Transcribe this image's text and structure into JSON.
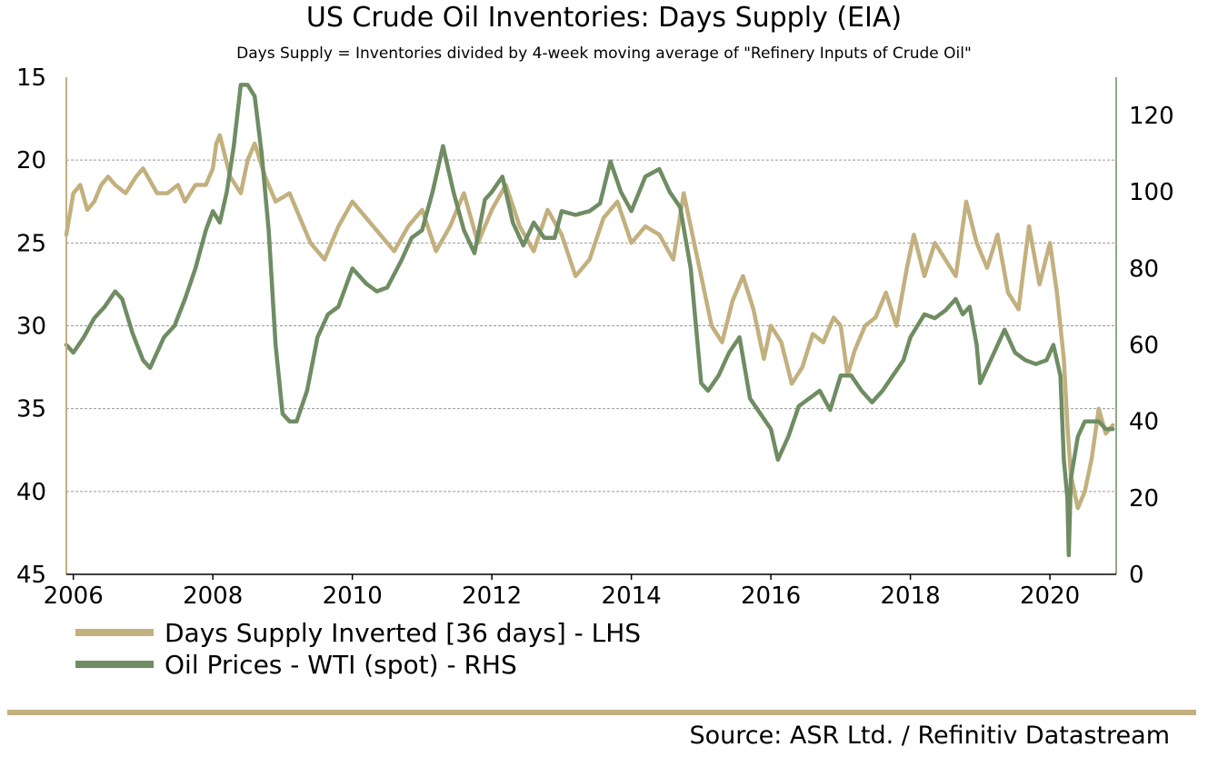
{
  "chart_data": {
    "type": "line",
    "title": "US Crude Oil Inventories: Days Supply (EIA)",
    "subtitle": "Days Supply = Inventories divided by 4-week moving average of \"Refinery Inputs of Crude Oil\"",
    "x_ticks": [
      "2006",
      "2008",
      "2010",
      "2012",
      "2014",
      "2016",
      "2018",
      "2020"
    ],
    "xlim": [
      2005.9,
      2020.95
    ],
    "left_axis": {
      "ticks": [
        "15",
        "20",
        "25",
        "30",
        "35",
        "40",
        "45"
      ],
      "ylim": [
        15,
        45
      ],
      "inverted": true
    },
    "right_axis": {
      "ticks": [
        "0",
        "20",
        "40",
        "60",
        "80",
        "100",
        "120"
      ],
      "ylim": [
        0,
        130
      ]
    },
    "grid": "horizontal dashed",
    "series": [
      {
        "name": "Days Supply Inverted [36 days] - LHS",
        "axis": "left",
        "color": "#c2b07e",
        "x": [
          2005.9,
          2006.0,
          2006.1,
          2006.2,
          2006.3,
          2006.4,
          2006.5,
          2006.6,
          2006.75,
          2006.9,
          2007.0,
          2007.2,
          2007.35,
          2007.5,
          2007.6,
          2007.75,
          2007.9,
          2008.0,
          2008.05,
          2008.1,
          2008.25,
          2008.4,
          2008.5,
          2008.6,
          2008.75,
          2008.9,
          2009.1,
          2009.25,
          2009.4,
          2009.6,
          2009.8,
          2010.0,
          2010.2,
          2010.4,
          2010.6,
          2010.8,
          2011.0,
          2011.2,
          2011.4,
          2011.6,
          2011.8,
          2012.0,
          2012.2,
          2012.4,
          2012.6,
          2012.8,
          2013.0,
          2013.2,
          2013.4,
          2013.6,
          2013.8,
          2014.0,
          2014.2,
          2014.4,
          2014.6,
          2014.75,
          2014.9,
          2015.0,
          2015.15,
          2015.3,
          2015.45,
          2015.6,
          2015.75,
          2015.9,
          2016.0,
          2016.15,
          2016.3,
          2016.45,
          2016.6,
          2016.75,
          2016.9,
          2017.0,
          2017.1,
          2017.2,
          2017.35,
          2017.5,
          2017.65,
          2017.8,
          2017.95,
          2018.05,
          2018.2,
          2018.35,
          2018.5,
          2018.65,
          2018.8,
          2018.95,
          2019.1,
          2019.25,
          2019.4,
          2019.55,
          2019.7,
          2019.85,
          2020.0,
          2020.1,
          2020.2,
          2020.25,
          2020.3,
          2020.4,
          2020.5,
          2020.6,
          2020.7,
          2020.8,
          2020.9
        ],
        "values": [
          24.5,
          22,
          21.5,
          23,
          22.5,
          21.5,
          21,
          21.5,
          22,
          21,
          20.5,
          22,
          22,
          21.5,
          22.5,
          21.5,
          21.5,
          20.5,
          19,
          18.5,
          21,
          22,
          20,
          19,
          21,
          22.5,
          22,
          23.5,
          25,
          26,
          24,
          22.5,
          23.5,
          24.5,
          25.5,
          24,
          23,
          25.5,
          24,
          22,
          25,
          23,
          21.5,
          24,
          25.5,
          23,
          24.5,
          27,
          26,
          23.5,
          22.5,
          25,
          24,
          24.5,
          26,
          22,
          25,
          27,
          30,
          31,
          28.5,
          27,
          29,
          32,
          30,
          31,
          33.5,
          32.5,
          30.5,
          31,
          29.5,
          30,
          33,
          31.5,
          30,
          29.5,
          28,
          30,
          26.5,
          24.5,
          27,
          25,
          26,
          27,
          22.5,
          25,
          26.5,
          24.5,
          28,
          29,
          24,
          27.5,
          25,
          28,
          32,
          36,
          39,
          41,
          40,
          38,
          35,
          36.5,
          36
        ]
      },
      {
        "name": "Oil Prices - WTI (spot) - RHS",
        "axis": "right",
        "color": "#6f8c63",
        "x": [
          2005.9,
          2006.0,
          2006.15,
          2006.3,
          2006.45,
          2006.6,
          2006.7,
          2006.85,
          2007.0,
          2007.1,
          2007.3,
          2007.45,
          2007.6,
          2007.75,
          2007.9,
          2008.0,
          2008.1,
          2008.2,
          2008.3,
          2008.4,
          2008.5,
          2008.6,
          2008.7,
          2008.8,
          2008.9,
          2009.0,
          2009.1,
          2009.2,
          2009.35,
          2009.5,
          2009.65,
          2009.8,
          2010.0,
          2010.2,
          2010.35,
          2010.5,
          2010.7,
          2010.85,
          2011.0,
          2011.15,
          2011.3,
          2011.45,
          2011.6,
          2011.75,
          2011.9,
          2012.0,
          2012.15,
          2012.3,
          2012.45,
          2012.6,
          2012.75,
          2012.9,
          2013.0,
          2013.2,
          2013.4,
          2013.55,
          2013.7,
          2013.85,
          2014.0,
          2014.2,
          2014.4,
          2014.55,
          2014.7,
          2014.85,
          2015.0,
          2015.1,
          2015.25,
          2015.4,
          2015.55,
          2015.7,
          2015.85,
          2016.0,
          2016.1,
          2016.25,
          2016.4,
          2016.55,
          2016.7,
          2016.85,
          2017.0,
          2017.15,
          2017.3,
          2017.45,
          2017.6,
          2017.75,
          2017.9,
          2018.0,
          2018.2,
          2018.35,
          2018.5,
          2018.65,
          2018.75,
          2018.85,
          2018.95,
          2019.0,
          2019.2,
          2019.35,
          2019.5,
          2019.65,
          2019.8,
          2019.95,
          2020.05,
          2020.15,
          2020.2,
          2020.25,
          2020.27,
          2020.3,
          2020.4,
          2020.5,
          2020.6,
          2020.7,
          2020.8,
          2020.9
        ],
        "values": [
          60,
          58,
          62,
          67,
          70,
          74,
          72,
          63,
          56,
          54,
          62,
          65,
          72,
          80,
          90,
          95,
          92,
          100,
          112,
          128,
          128,
          125,
          110,
          90,
          60,
          42,
          40,
          40,
          48,
          62,
          68,
          70,
          80,
          76,
          74,
          75,
          82,
          88,
          90,
          100,
          112,
          100,
          90,
          84,
          98,
          100,
          104,
          92,
          86,
          92,
          88,
          88,
          95,
          94,
          95,
          97,
          108,
          100,
          95,
          104,
          106,
          100,
          96,
          80,
          50,
          48,
          52,
          58,
          62,
          46,
          42,
          38,
          30,
          36,
          44,
          46,
          48,
          43,
          52,
          52,
          48,
          45,
          48,
          52,
          56,
          62,
          68,
          67,
          69,
          72,
          68,
          70,
          60,
          50,
          58,
          64,
          58,
          56,
          55,
          56,
          60,
          52,
          30,
          20,
          5,
          25,
          36,
          40,
          40,
          40,
          38,
          38
        ]
      }
    ],
    "legend_position": "bottom-left",
    "source": "Source: ASR Ltd. / Refinitiv Datastream"
  }
}
